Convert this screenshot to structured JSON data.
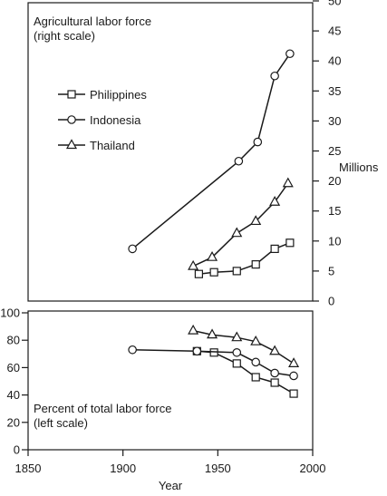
{
  "chart_data": [
    {
      "type": "line",
      "title": "Agricultural labor force",
      "subtitle": "(right scale)",
      "ylabel": "Millions",
      "ylim": [
        0,
        50
      ],
      "yticks": [
        0,
        5,
        10,
        15,
        20,
        25,
        30,
        35,
        40,
        45,
        50
      ],
      "grid": false,
      "legend_position": "upper-left",
      "series": [
        {
          "name": "Philippines",
          "marker": "square",
          "x": [
            1940,
            1948,
            1960,
            1970,
            1980,
            1988
          ],
          "y": [
            4.5,
            4.8,
            5.0,
            6.1,
            8.7,
            9.7
          ]
        },
        {
          "name": "Indonesia",
          "marker": "circle",
          "x": [
            1905,
            1961,
            1971,
            1980,
            1988
          ],
          "y": [
            8.7,
            23.3,
            26.5,
            37.5,
            41.2
          ]
        },
        {
          "name": "Thailand",
          "marker": "triangle",
          "x": [
            1937,
            1947,
            1960,
            1970,
            1980,
            1987
          ],
          "y": [
            5.8,
            7.3,
            11.3,
            13.3,
            16.5,
            19.6
          ]
        }
      ]
    },
    {
      "type": "line",
      "title": "Percent of total labor force",
      "subtitle": "(left scale)",
      "xlabel": "Year",
      "xlim": [
        1850,
        2000
      ],
      "xticks": [
        1850,
        1900,
        1950,
        2000
      ],
      "ylim": [
        0,
        100
      ],
      "yticks": [
        0,
        20,
        40,
        60,
        80,
        100
      ],
      "grid": false,
      "series": [
        {
          "name": "Philippines",
          "marker": "square",
          "x": [
            1939,
            1948,
            1960,
            1970,
            1980,
            1990
          ],
          "y": [
            72,
            71,
            63,
            53,
            49,
            41
          ]
        },
        {
          "name": "Indonesia",
          "marker": "circle",
          "x": [
            1905,
            1939,
            1960,
            1970,
            1980,
            1990
          ],
          "y": [
            73,
            72,
            71,
            64,
            56,
            54
          ]
        },
        {
          "name": "Thailand",
          "marker": "triangle",
          "x": [
            1937,
            1947,
            1960,
            1970,
            1980,
            1990
          ],
          "y": [
            87,
            84,
            82,
            79,
            72,
            63
          ]
        }
      ]
    }
  ]
}
